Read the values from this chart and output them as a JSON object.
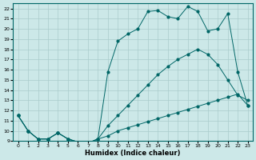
{
  "xlabel": "Humidex (Indice chaleur)",
  "bg_color": "#cce8e8",
  "grid_color": "#aacccc",
  "line_color": "#006666",
  "xlim": [
    -0.5,
    23.5
  ],
  "ylim": [
    9,
    22.5
  ],
  "yticks": [
    9,
    10,
    11,
    12,
    13,
    14,
    15,
    16,
    17,
    18,
    19,
    20,
    21,
    22
  ],
  "xticks": [
    0,
    1,
    2,
    3,
    4,
    5,
    6,
    7,
    8,
    9,
    10,
    11,
    12,
    13,
    14,
    15,
    16,
    17,
    18,
    19,
    20,
    21,
    22,
    23
  ],
  "line1_x": [
    0,
    1,
    2,
    3,
    4,
    5,
    6,
    7,
    8,
    9,
    10,
    11,
    12,
    13,
    14,
    15,
    16,
    17,
    18,
    19,
    20,
    21,
    22,
    23
  ],
  "line1_y": [
    11.5,
    10.0,
    9.2,
    9.2,
    9.8,
    9.2,
    8.9,
    8.8,
    9.2,
    9.5,
    10.0,
    10.3,
    10.6,
    10.9,
    11.2,
    11.5,
    11.8,
    12.1,
    12.4,
    12.7,
    13.0,
    13.3,
    13.6,
    12.5
  ],
  "line2_x": [
    0,
    1,
    2,
    3,
    4,
    5,
    6,
    7,
    8,
    9,
    10,
    11,
    12,
    13,
    14,
    15,
    16,
    17,
    18,
    19,
    20,
    21,
    22,
    23
  ],
  "line2_y": [
    11.5,
    10.0,
    9.2,
    9.2,
    9.8,
    9.2,
    8.9,
    8.8,
    9.2,
    10.5,
    11.5,
    12.5,
    13.5,
    14.5,
    15.5,
    16.3,
    17.0,
    17.5,
    18.0,
    17.5,
    16.5,
    15.0,
    13.5,
    13.0
  ],
  "line3_x": [
    0,
    1,
    2,
    3,
    4,
    5,
    6,
    7,
    8,
    9,
    10,
    11,
    12,
    13,
    14,
    15,
    16,
    17,
    18,
    19,
    20,
    21,
    22,
    23
  ],
  "line3_y": [
    11.5,
    10.0,
    9.2,
    9.2,
    9.8,
    9.2,
    8.9,
    8.8,
    9.2,
    15.8,
    18.8,
    19.5,
    20.0,
    21.7,
    21.8,
    21.2,
    21.0,
    22.2,
    21.7,
    19.8,
    20.0,
    21.5,
    15.8,
    12.5
  ]
}
